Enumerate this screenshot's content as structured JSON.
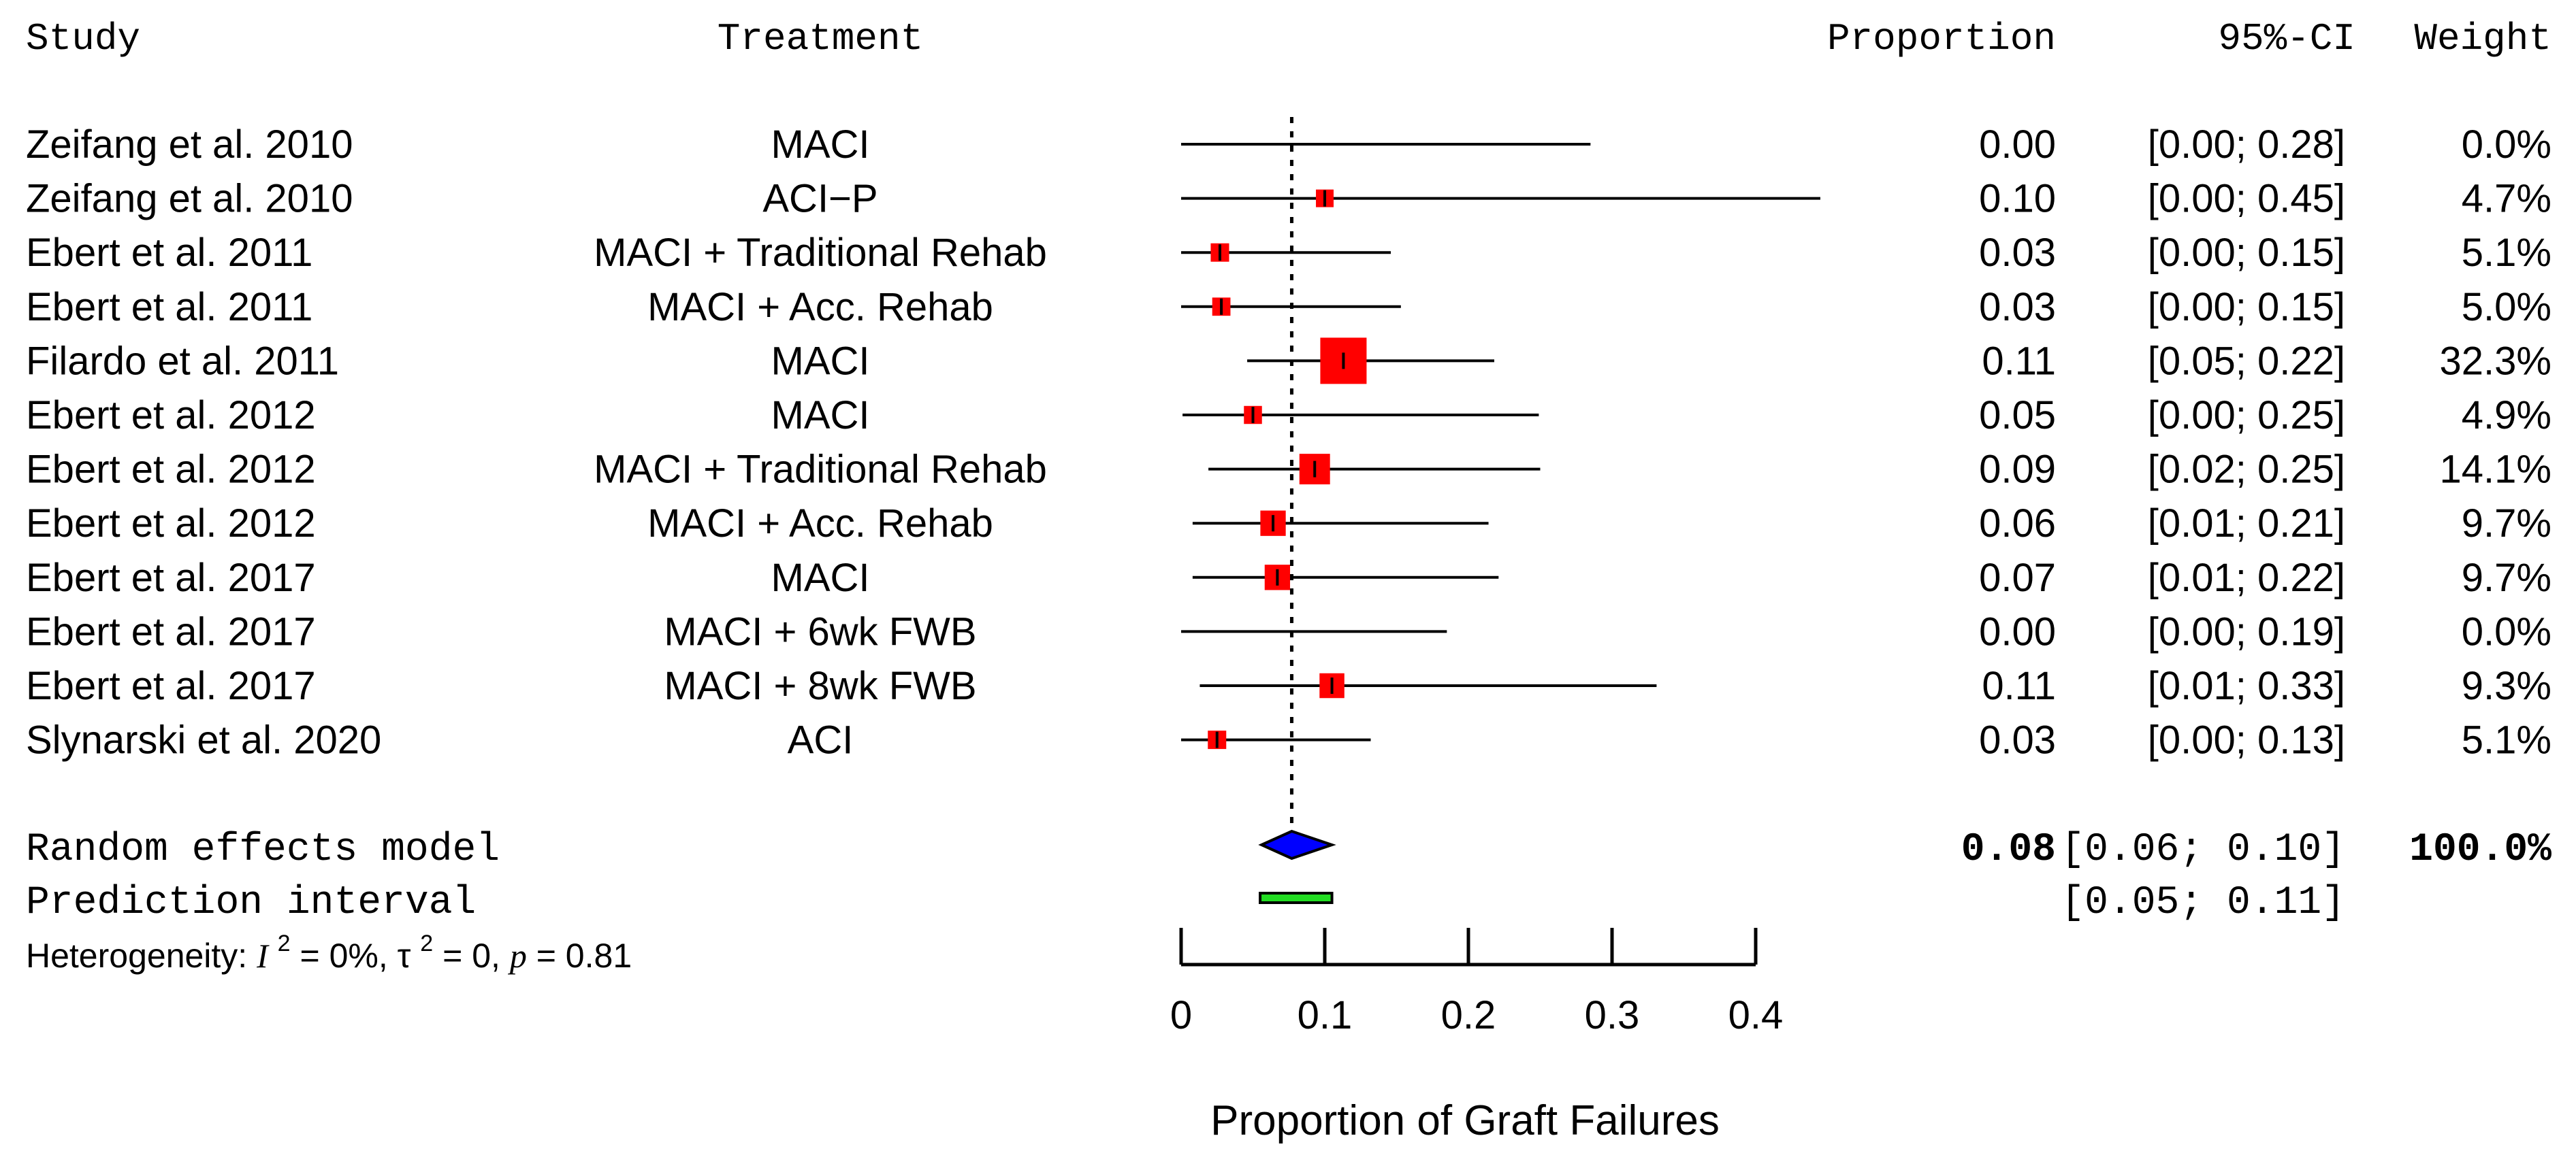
{
  "chart_data": {
    "type": "forest",
    "headers": {
      "study": "Study",
      "treatment": "Treatment",
      "proportion": "Proportion",
      "ci": "95%-CI",
      "weight": "Weight"
    },
    "rows": [
      {
        "study": "Zeifang et al. 2010",
        "treatment": "MACI",
        "proportion": 0.0,
        "lower": 0.0,
        "upper": 0.285,
        "weight": 0.0,
        "proportion_label": "0.00",
        "ci_label": "[0.00; 0.28]",
        "weight_label": "0.0%"
      },
      {
        "study": "Zeifang et al. 2010",
        "treatment": "ACI−P",
        "proportion": 0.1,
        "lower": 0.0,
        "upper": 0.445,
        "weight": 4.7,
        "proportion_label": "0.10",
        "ci_label": "[0.00; 0.45]",
        "weight_label": "4.7%"
      },
      {
        "study": "Ebert et al. 2011",
        "treatment": "MACI + Traditional Rehab",
        "proportion": 0.027,
        "lower": 0.0,
        "upper": 0.146,
        "weight": 5.1,
        "proportion_label": "0.03",
        "ci_label": "[0.00; 0.15]",
        "weight_label": "5.1%"
      },
      {
        "study": "Ebert et al. 2011",
        "treatment": "MACI + Acc. Rehab",
        "proportion": 0.028,
        "lower": 0.0,
        "upper": 0.153,
        "weight": 5.0,
        "proportion_label": "0.03",
        "ci_label": "[0.00; 0.15]",
        "weight_label": "5.0%"
      },
      {
        "study": "Filardo et al. 2011",
        "treatment": "MACI",
        "proportion": 0.113,
        "lower": 0.046,
        "upper": 0.218,
        "weight": 32.3,
        "proportion_label": "0.11",
        "ci_label": "[0.05; 0.22]",
        "weight_label": "32.3%"
      },
      {
        "study": "Ebert et al. 2012",
        "treatment": "MACI",
        "proportion": 0.05,
        "lower": 0.001,
        "upper": 0.249,
        "weight": 4.9,
        "proportion_label": "0.05",
        "ci_label": "[0.00; 0.25]",
        "weight_label": "4.9%"
      },
      {
        "study": "Ebert et al. 2012",
        "treatment": "MACI + Traditional Rehab",
        "proportion": 0.093,
        "lower": 0.019,
        "upper": 0.25,
        "weight": 14.1,
        "proportion_label": "0.09",
        "ci_label": "[0.02; 0.25]",
        "weight_label": "14.1%"
      },
      {
        "study": "Ebert et al. 2012",
        "treatment": "MACI + Acc. Rehab",
        "proportion": 0.064,
        "lower": 0.008,
        "upper": 0.214,
        "weight": 9.7,
        "proportion_label": "0.06",
        "ci_label": "[0.01; 0.21]",
        "weight_label": "9.7%"
      },
      {
        "study": "Ebert et al. 2017",
        "treatment": "MACI",
        "proportion": 0.067,
        "lower": 0.008,
        "upper": 0.221,
        "weight": 9.7,
        "proportion_label": "0.07",
        "ci_label": "[0.01; 0.22]",
        "weight_label": "9.7%"
      },
      {
        "study": "Ebert et al. 2017",
        "treatment": "MACI + 6wk FWB",
        "proportion": 0.0,
        "lower": 0.0,
        "upper": 0.185,
        "weight": 0.0,
        "proportion_label": "0.00",
        "ci_label": "[0.00; 0.19]",
        "weight_label": "0.0%"
      },
      {
        "study": "Ebert et al. 2017",
        "treatment": "MACI + 8wk FWB",
        "proportion": 0.105,
        "lower": 0.013,
        "upper": 0.331,
        "weight": 9.3,
        "proportion_label": "0.11",
        "ci_label": "[0.01; 0.33]",
        "weight_label": "9.3%"
      },
      {
        "study": "Slynarski et al. 2020",
        "treatment": "ACI",
        "proportion": 0.025,
        "lower": 0.0,
        "upper": 0.132,
        "weight": 5.1,
        "proportion_label": "0.03",
        "ci_label": "[0.00; 0.13]",
        "weight_label": "5.1%"
      }
    ],
    "summary": {
      "label": "Random effects model",
      "estimate": 0.077,
      "lower": 0.056,
      "upper": 0.105,
      "estimate_label": "0.08",
      "ci_label": "[0.06; 0.10]",
      "weight_label": "100.0%"
    },
    "prediction": {
      "label": "Prediction interval",
      "lower": 0.055,
      "upper": 0.105,
      "ci_label": "[0.05; 0.11]"
    },
    "heterogeneity": {
      "prefix": "Heterogeneity: ",
      "i2_symbol": "I",
      "superscript": "2",
      "i2_value": " = 0%, ",
      "tau_symbol": "τ",
      "tau_value": " = 0, ",
      "p_symbol": "p",
      "p_value": " = 0.81"
    },
    "reference_line": 0.077,
    "xaxis": {
      "label": "Proportion of Graft Failures",
      "ticks": [
        0,
        0.1,
        0.2,
        0.3,
        0.4
      ],
      "tick_labels": [
        "0",
        "0.1",
        "0.2",
        "0.3",
        "0.4"
      ],
      "range": [
        0,
        0.4
      ]
    },
    "colors": {
      "study_square": "#ff0000",
      "summary_diamond": "#0000ff",
      "prediction_bar": "#22dd22",
      "line": "#000000"
    }
  }
}
